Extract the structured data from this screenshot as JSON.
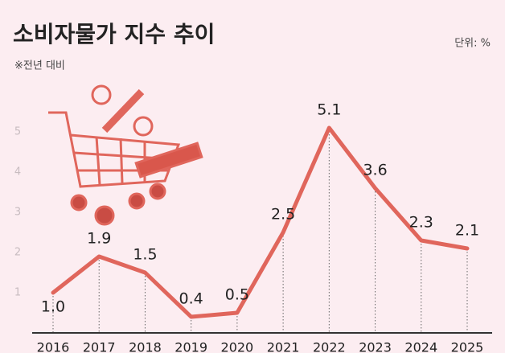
{
  "chart_data": {
    "type": "line",
    "title": "소비자물가 지수 추이",
    "subtitle": "※전년 대비",
    "unit_label": "단위: %",
    "categories": [
      "2016",
      "2017",
      "2018",
      "2019",
      "2020",
      "2021",
      "2022",
      "2023",
      "2024",
      "2025"
    ],
    "values": [
      1.0,
      1.9,
      1.5,
      0.4,
      0.5,
      2.5,
      5.1,
      3.6,
      2.3,
      2.1
    ],
    "value_labels": [
      "1.0",
      "1.9",
      "1.5",
      "0.4",
      "0.5",
      "2.5",
      "5.1",
      "3.6",
      "2.3",
      "2.1"
    ],
    "color": "#e0665c",
    "ylim": [
      0,
      6
    ],
    "yticks": [
      1,
      2,
      3,
      4,
      5
    ]
  }
}
